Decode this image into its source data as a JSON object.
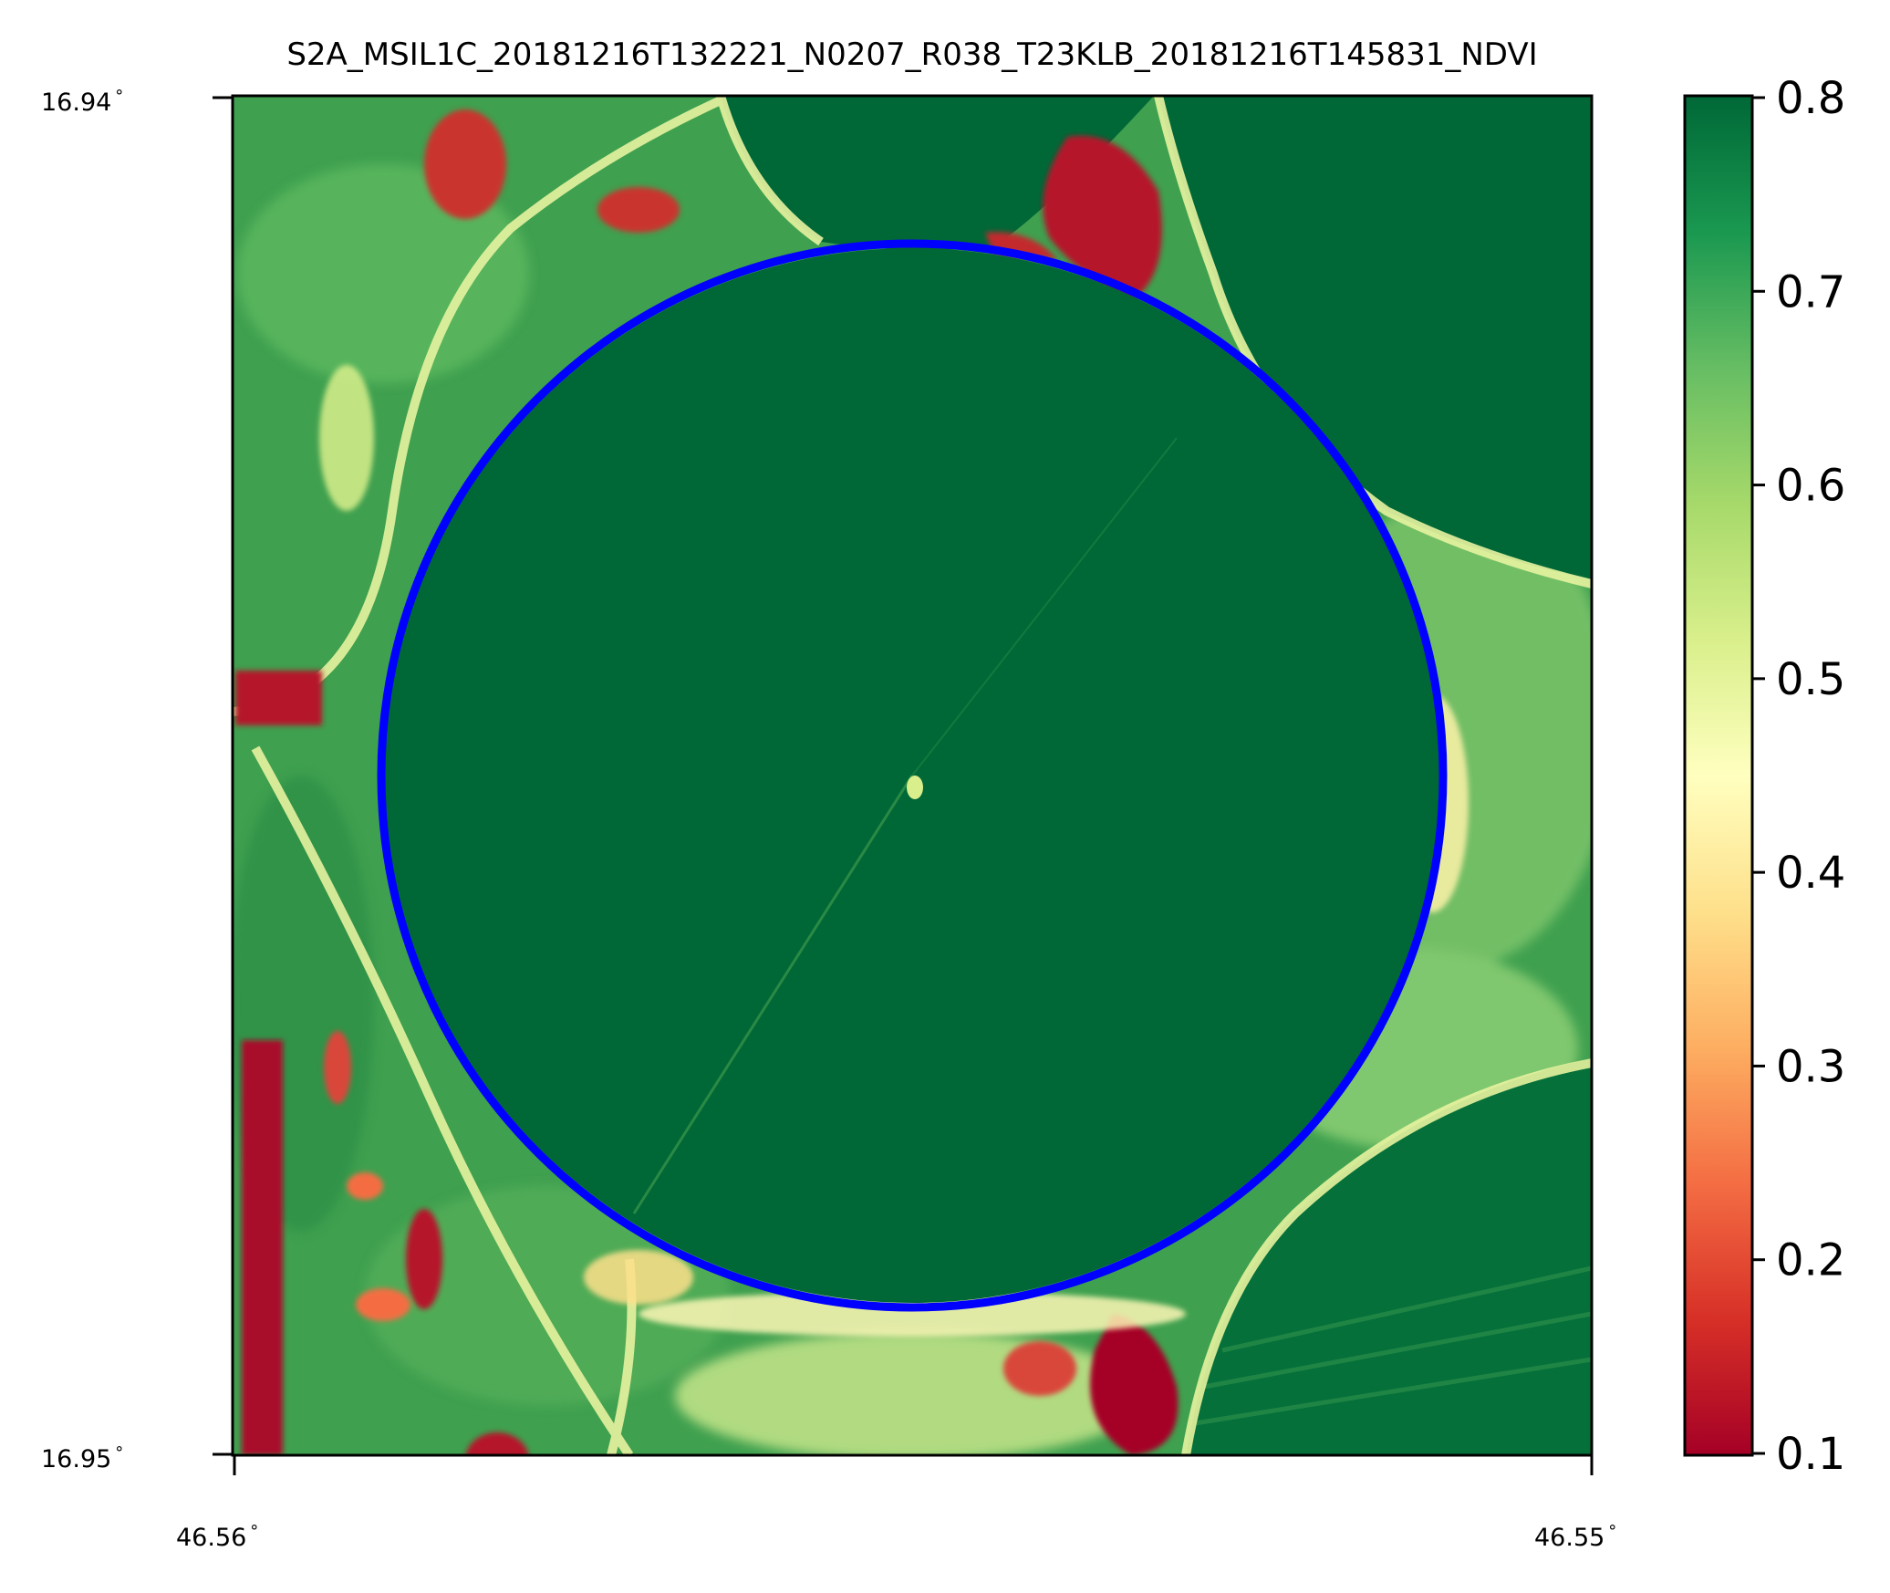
{
  "title": "S2A_MSIL1C_20181216T132221_N0207_R038_T23KLB_20181216T145831_NDVI",
  "axes": {
    "y_ticks": [
      "16.94$^\\circ$",
      "16.95$^\\circ$"
    ],
    "y_tick_text": [
      "16.94",
      "16.95"
    ],
    "x_tick_text": [
      "46.56",
      "46.55"
    ],
    "degree_symbol": "°"
  },
  "colorbar": {
    "min": 0.1,
    "max": 0.8,
    "tick_values": [
      0.8,
      0.7,
      0.6,
      0.5,
      0.4,
      0.3,
      0.2,
      0.1
    ],
    "tick_labels": [
      "0.8",
      "0.7",
      "0.6",
      "0.5",
      "0.4",
      "0.3",
      "0.2",
      "0.1"
    ],
    "colormap": "RdYlGn",
    "colors": [
      "#a50026",
      "#d73027",
      "#f46d43",
      "#fdae61",
      "#fee08b",
      "#ffffbf",
      "#d9ef8b",
      "#a6d96a",
      "#66bd63",
      "#1a9850",
      "#006837"
    ]
  },
  "overlay": {
    "shape": "circle",
    "color": "#0000ff"
  },
  "map_colors": {
    "field_dark": "#006837",
    "field_mid": "#1a9850",
    "grass": "#4fae5a",
    "light": "#c8e98a",
    "pale": "#fdf7b5",
    "bare": "#b5142a",
    "orange": "#f46d43"
  }
}
